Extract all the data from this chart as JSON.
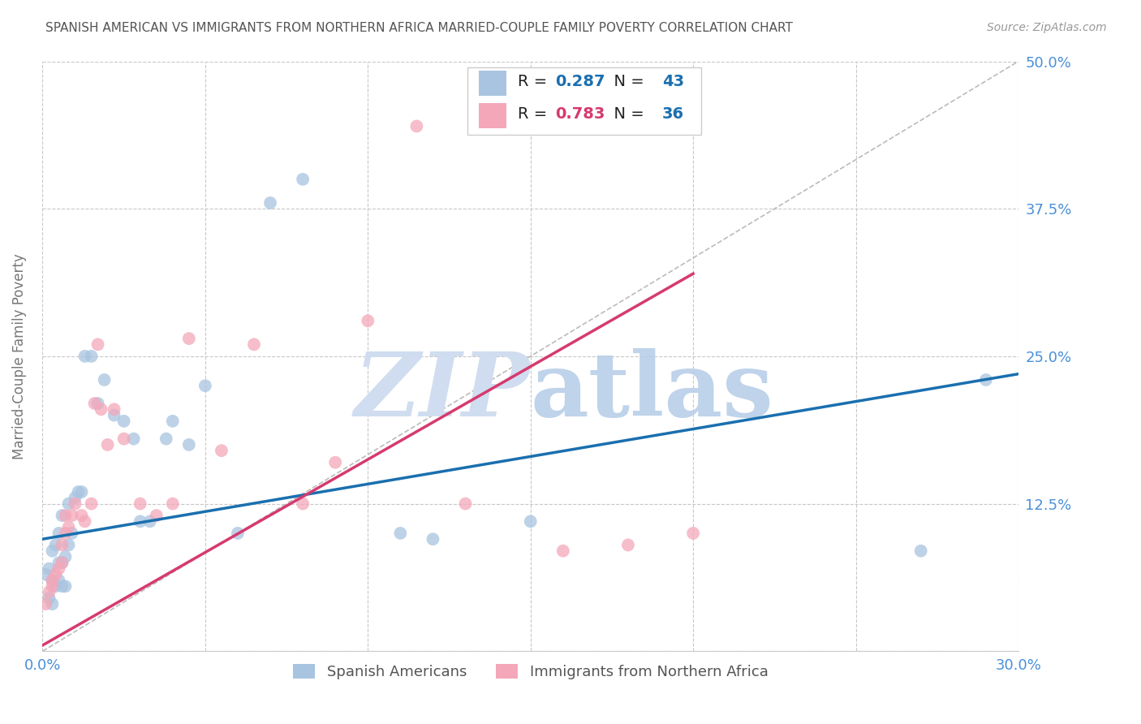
{
  "title": "SPANISH AMERICAN VS IMMIGRANTS FROM NORTHERN AFRICA MARRIED-COUPLE FAMILY POVERTY CORRELATION CHART",
  "source": "Source: ZipAtlas.com",
  "ylabel": "Married-Couple Family Poverty",
  "xlim": [
    0.0,
    0.3
  ],
  "ylim": [
    0.0,
    0.5
  ],
  "blue_R": 0.287,
  "blue_N": 43,
  "pink_R": 0.783,
  "pink_N": 36,
  "blue_color": "#a8c4e0",
  "pink_color": "#f4a7b9",
  "blue_line_color": "#1a6faf",
  "pink_line_color": "#d63a6e",
  "grid_color": "#c8c8c8",
  "title_color": "#555555",
  "axis_label_color": "#777777",
  "tick_label_color": "#4a90d9",
  "watermark_zip_color": "#d0ddf0",
  "watermark_atlas_color": "#b8cfe8",
  "legend_label1": "Spanish Americans",
  "legend_label2": "Immigrants from Northern Africa",
  "blue_x": [
    0.001,
    0.002,
    0.002,
    0.003,
    0.003,
    0.003,
    0.004,
    0.004,
    0.005,
    0.005,
    0.005,
    0.006,
    0.006,
    0.006,
    0.007,
    0.007,
    0.008,
    0.008,
    0.009,
    0.01,
    0.011,
    0.012,
    0.013,
    0.015,
    0.017,
    0.019,
    0.022,
    0.025,
    0.028,
    0.03,
    0.033,
    0.038,
    0.04,
    0.045,
    0.05,
    0.06,
    0.07,
    0.08,
    0.11,
    0.12,
    0.15,
    0.27,
    0.29
  ],
  "blue_y": [
    0.065,
    0.045,
    0.07,
    0.04,
    0.06,
    0.085,
    0.055,
    0.09,
    0.06,
    0.075,
    0.1,
    0.055,
    0.075,
    0.115,
    0.055,
    0.08,
    0.09,
    0.125,
    0.1,
    0.13,
    0.135,
    0.135,
    0.25,
    0.25,
    0.21,
    0.23,
    0.2,
    0.195,
    0.18,
    0.11,
    0.11,
    0.18,
    0.195,
    0.175,
    0.225,
    0.1,
    0.38,
    0.4,
    0.1,
    0.095,
    0.11,
    0.085,
    0.23
  ],
  "pink_x": [
    0.001,
    0.002,
    0.003,
    0.003,
    0.004,
    0.005,
    0.006,
    0.006,
    0.007,
    0.007,
    0.008,
    0.009,
    0.01,
    0.012,
    0.013,
    0.015,
    0.016,
    0.017,
    0.018,
    0.02,
    0.022,
    0.025,
    0.03,
    0.035,
    0.04,
    0.045,
    0.055,
    0.065,
    0.08,
    0.09,
    0.1,
    0.115,
    0.13,
    0.16,
    0.18,
    0.2
  ],
  "pink_y": [
    0.04,
    0.05,
    0.055,
    0.06,
    0.065,
    0.07,
    0.075,
    0.09,
    0.1,
    0.115,
    0.105,
    0.115,
    0.125,
    0.115,
    0.11,
    0.125,
    0.21,
    0.26,
    0.205,
    0.175,
    0.205,
    0.18,
    0.125,
    0.115,
    0.125,
    0.265,
    0.17,
    0.26,
    0.125,
    0.16,
    0.28,
    0.445,
    0.125,
    0.085,
    0.09,
    0.1
  ],
  "blue_line_x": [
    0.0,
    0.3
  ],
  "blue_line_y": [
    0.095,
    0.235
  ],
  "pink_line_x": [
    0.0,
    0.2
  ],
  "pink_line_y": [
    0.005,
    0.32
  ],
  "diag_line_x": [
    0.0,
    0.3
  ],
  "diag_line_y": [
    0.0,
    0.5
  ]
}
